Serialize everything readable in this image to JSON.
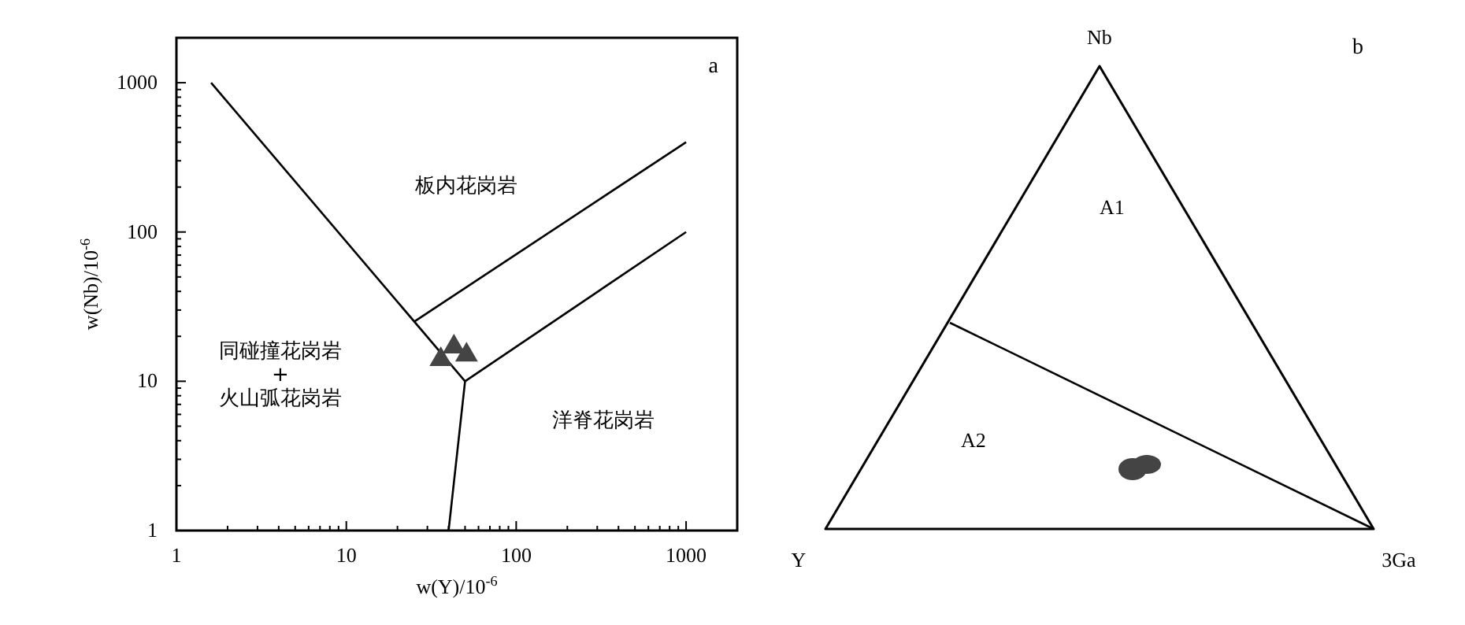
{
  "chart_data": [
    {
      "type": "scatter",
      "xlabel": "w(Y)/10$^{-6}$",
      "ylabel": "w(Nb)/10$^{-6}$",
      "log": "xy",
      "xlim": [
        1,
        2000
      ],
      "ylim": [
        1,
        2000
      ],
      "xticks": [
        1,
        {
          "value": 2,
          "label": null
        },
        {
          "value": 3,
          "label": null
        },
        {
          "value": 4,
          "label": null
        },
        {
          "value": 5,
          "label": null
        },
        {
          "value": 6,
          "label": null
        },
        {
          "value": 7,
          "label": null
        },
        {
          "value": 8,
          "label": null
        },
        {
          "value": 9,
          "label": null
        },
        10,
        {
          "value": 20,
          "label": null
        },
        {
          "value": 30,
          "label": null
        },
        {
          "value": 40,
          "label": null
        },
        {
          "value": 50,
          "label": null
        },
        {
          "value": 60,
          "label": null
        },
        {
          "value": 70,
          "label": null
        },
        {
          "value": 80,
          "label": null
        },
        {
          "value": 90,
          "label": null
        },
        100,
        {
          "value": 200,
          "label": null
        },
        {
          "value": 300,
          "label": null
        },
        {
          "value": 400,
          "label": null
        },
        {
          "value": 500,
          "label": null
        },
        {
          "value": 600,
          "label": null
        },
        {
          "value": 700,
          "label": null
        },
        {
          "value": 800,
          "label": null
        },
        {
          "value": 900,
          "label": null
        },
        1000
      ],
      "yticks": [
        1,
        {
          "value": 2,
          "label": null
        },
        {
          "value": 3,
          "label": null
        },
        {
          "value": 4,
          "label": null
        },
        {
          "value": 5,
          "label": null
        },
        {
          "value": 6,
          "label": null
        },
        {
          "value": 7,
          "label": null
        },
        {
          "value": 8,
          "label": null
        },
        {
          "value": 9,
          "label": null
        },
        10,
        {
          "value": 20,
          "label": null
        },
        {
          "value": 30,
          "label": null
        },
        {
          "value": 40,
          "label": null
        },
        {
          "value": 50,
          "label": null
        },
        {
          "value": 60,
          "label": null
        },
        {
          "value": 70,
          "label": null
        },
        {
          "value": 80,
          "label": null
        },
        {
          "value": 90,
          "label": null
        },
        100,
        {
          "value": 200,
          "label": null
        },
        {
          "value": 300,
          "label": null
        },
        {
          "value": 400,
          "label": null
        },
        {
          "value": 500,
          "label": null
        },
        {
          "value": 600,
          "label": null
        },
        {
          "value": 700,
          "label": null
        },
        {
          "value": 800,
          "label": null
        },
        {
          "value": 900,
          "label": null
        },
        1000
      ],
      "grid": false,
      "marker": "none",
      "line_style": "solid",
      "series": [
        {
          "type": "line",
          "color": "#000000",
          "x": [
            1.6,
            50
          ],
          "values": [
            1000,
            10
          ]
        },
        {
          "type": "line",
          "color": "#000000",
          "x": [
            25,
            1000
          ],
          "values": [
            25,
            400
          ]
        },
        {
          "type": "line",
          "color": "#000000",
          "x": [
            50,
            1000
          ],
          "values": [
            10,
            100
          ]
        },
        {
          "type": "line",
          "color": "#000000",
          "x": [
            50,
            40
          ],
          "values": [
            10,
            1
          ]
        },
        {
          "type": "scatter",
          "marker": "triangle",
          "color": "#444444",
          "x": [
            36,
            43,
            51
          ],
          "values": [
            14,
            17,
            15
          ]
        }
      ],
      "annotations": [
        "a",
        "板内花岗岩",
        "同碰撞花岗岩\n+\n火山弧花岗岩",
        "洋脊花岗岩"
      ]
    },
    {
      "type": "other",
      "annotations": [
        "b",
        "Nb",
        "Y",
        "3Ga",
        "A1",
        "A2"
      ]
    }
  ]
}
